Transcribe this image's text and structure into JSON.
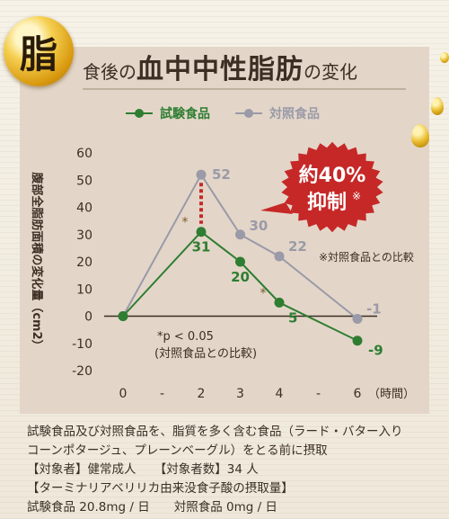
{
  "header": {
    "badge": "脂",
    "title_pre": "食後の",
    "title_main": "血中中性脂肪",
    "title_post": "の変化"
  },
  "colors": {
    "test": "#2e7d32",
    "control": "#9a9aa8",
    "accent": "#c62828"
  },
  "callout": {
    "line1": "約40%",
    "line2": "抑制",
    "mark": "※"
  },
  "chart_data": {
    "type": "line",
    "ylabel": "腹部全脂肪面積の変化量（cm2）",
    "xlabel": "（時間）",
    "ylim": [
      -20,
      60
    ],
    "y_ticks": [
      60,
      50,
      40,
      30,
      20,
      10,
      0,
      -10,
      -20
    ],
    "x_ticks": [
      "0",
      "-",
      "2",
      "3",
      "4",
      "-",
      "6"
    ],
    "x_tick_values": [
      0,
      1,
      2,
      3,
      4,
      5,
      6
    ],
    "x_unit": "（時間）",
    "series": [
      {
        "name": "試験食品",
        "x": [
          0,
          2,
          3,
          4,
          6
        ],
        "values": [
          0,
          31,
          20,
          5,
          -9
        ],
        "labels": [
          "",
          "31",
          "20",
          "5",
          "-9"
        ],
        "color": "#2e7d32"
      },
      {
        "name": "対照食品",
        "x": [
          0,
          2,
          3,
          4,
          6
        ],
        "values": [
          0,
          52,
          30,
          22,
          -1
        ],
        "labels": [
          "",
          "52",
          "30",
          "22",
          "-1"
        ],
        "color": "#9a9aa8"
      }
    ],
    "significance": [
      {
        "x": 2,
        "label": "*"
      },
      {
        "x": 4,
        "label": "*"
      }
    ],
    "annotation_sig_1": "*p < 0.05",
    "annotation_sig_2": "(対照食品との比較)",
    "annotation_ref": "※対照食品との比較"
  },
  "notes": {
    "line1": "試験食品及び対照食品を、脂質を多く含む食品（ラード・バター入り",
    "line2": "コーンポタージュ、プレーンベーグル）をとる前に摂取",
    "line3": "【対象者】健常成人　　【対象者数】34 人",
    "line4": "【ターミナリアベリリカ由来没食子酸の摂取量】",
    "line5": "試験食品 20.8mg / 日　　対照食品 0mg / 日"
  }
}
